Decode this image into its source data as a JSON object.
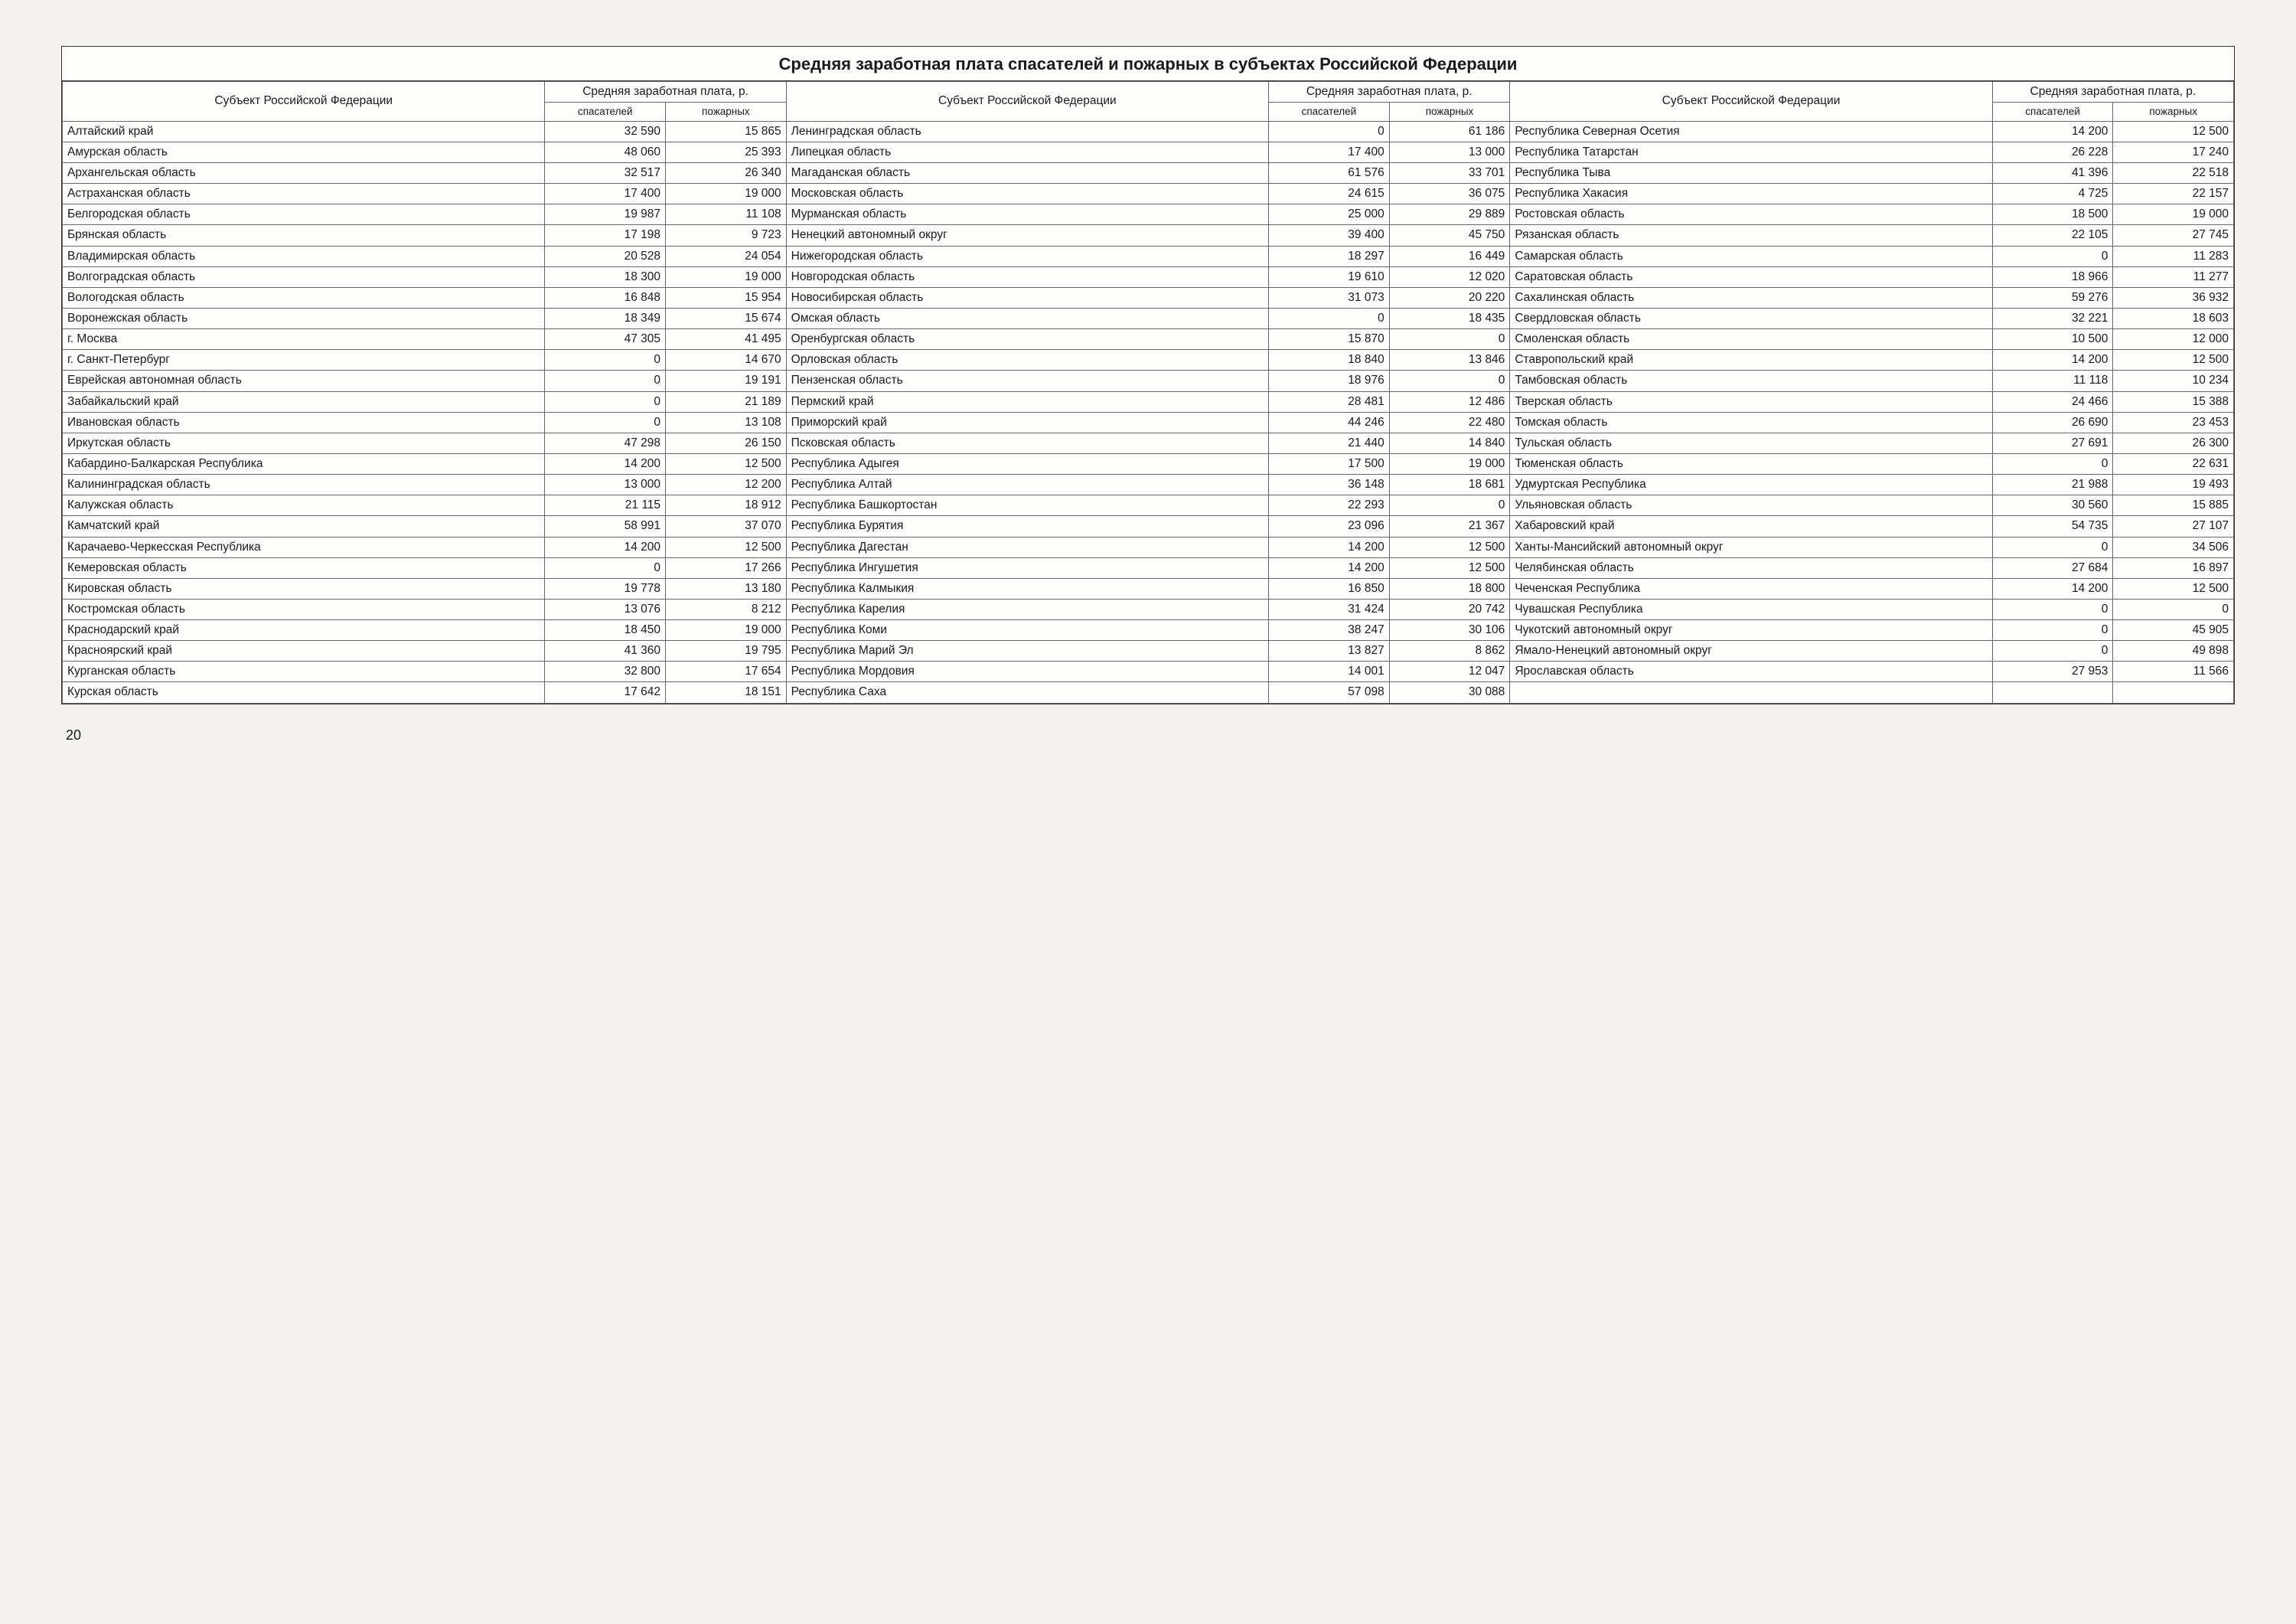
{
  "title": "Средняя заработная плата спасателей и пожарных в субъектах Российской Федерации",
  "header": {
    "subject": "Субъект Российской Федерации",
    "salary_group": "Средняя заработная плата, р.",
    "rescuers": "спасателей",
    "firefighters": "пожарных"
  },
  "page_number": "20",
  "columns": [
    {
      "type": "subject",
      "width": "22%"
    },
    {
      "type": "num",
      "width": "5.6%"
    },
    {
      "type": "num",
      "width": "5.6%"
    },
    {
      "type": "subject",
      "width": "22%"
    },
    {
      "type": "num",
      "width": "5.6%"
    },
    {
      "type": "num",
      "width": "5.6%"
    },
    {
      "type": "subject",
      "width": "22%"
    },
    {
      "type": "num",
      "width": "5.6%"
    },
    {
      "type": "num",
      "width": "5.6%"
    }
  ],
  "rows": [
    [
      "Алтайский край",
      "32 590",
      "15 865",
      "Ленинградская область",
      "0",
      "61 186",
      "Республика Северная Осетия",
      "14 200",
      "12 500"
    ],
    [
      "Амурская область",
      "48 060",
      "25 393",
      "Липецкая область",
      "17 400",
      "13 000",
      "Республика Татарстан",
      "26 228",
      "17 240"
    ],
    [
      "Архангельская область",
      "32 517",
      "26 340",
      "Магаданская область",
      "61 576",
      "33 701",
      "Республика Тыва",
      "41 396",
      "22 518"
    ],
    [
      "Астраханская область",
      "17 400",
      "19 000",
      "Московская область",
      "24 615",
      "36 075",
      "Республика Хакасия",
      "4 725",
      "22 157"
    ],
    [
      "Белгородская  область",
      "19 987",
      "11 108",
      "Мурманская область",
      "25 000",
      "29 889",
      "Ростовская область",
      "18 500",
      "19 000"
    ],
    [
      "Брянская  область",
      "17 198",
      "9 723",
      "Ненецкий автономный округ",
      "39 400",
      "45 750",
      "Рязанская область",
      "22 105",
      "27 745"
    ],
    [
      "Владимирская область",
      "20 528",
      "24 054",
      "Нижегородская область",
      "18 297",
      "16 449",
      "Самарская область",
      "0",
      "11 283"
    ],
    [
      "Волгоградская область",
      "18 300",
      "19 000",
      "Новгородская область",
      "19 610",
      "12 020",
      "Саратовская область",
      "18 966",
      "11 277"
    ],
    [
      "Вологодская область",
      "16 848",
      "15 954",
      "Новосибирская область",
      "31 073",
      "20 220",
      "Сахалинская область",
      "59 276",
      "36 932"
    ],
    [
      "Воронежская область",
      "18 349",
      "15 674",
      "Омская область",
      "0",
      "18 435",
      "Свердловская область",
      "32 221",
      "18 603"
    ],
    [
      "г. Москва",
      "47 305",
      "41 495",
      "Оренбургская область",
      "15 870",
      "0",
      "Смоленская область",
      "10 500",
      "12 000"
    ],
    [
      "г. Санкт-Петербург",
      "0",
      "14 670",
      "Орловская область",
      "18 840",
      "13 846",
      "Ставропольский край",
      "14 200",
      "12 500"
    ],
    [
      "Еврейская автономная область",
      "0",
      "19 191",
      "Пензенская область",
      "18 976",
      "0",
      "Тамбовская область",
      "11 118",
      "10 234"
    ],
    [
      "Забайкальский край",
      "0",
      "21 189",
      "Пермский край",
      "28 481",
      "12 486",
      "Тверская область",
      "24 466",
      "15 388"
    ],
    [
      "Ивановская область",
      "0",
      "13 108",
      "Приморский край",
      "44 246",
      "22 480",
      "Томская область",
      "26 690",
      "23 453"
    ],
    [
      "Иркутская область",
      "47 298",
      "26 150",
      "Псковская область",
      "21 440",
      "14 840",
      "Тульская область",
      "27 691",
      "26 300"
    ],
    [
      "Кабардино-Балкарская Республика",
      "14 200",
      "12 500",
      "Республика Адыгея",
      "17 500",
      "19 000",
      "Тюменская область",
      "0",
      "22 631"
    ],
    [
      "Калининградская область",
      "13 000",
      "12 200",
      "Республика Алтай",
      "36 148",
      "18 681",
      "Удмуртская Республика",
      "21 988",
      "19 493"
    ],
    [
      "Калужская область",
      "21 115",
      "18 912",
      "Республика Башкортостан",
      "22 293",
      "0",
      "Ульяновская область",
      "30 560",
      "15 885"
    ],
    [
      "Камчатский край",
      "58 991",
      "37 070",
      "Республика Бурятия",
      "23 096",
      "21 367",
      "Хабаровский край",
      "54 735",
      "27 107"
    ],
    [
      "Карачаево-Черкесская Республика",
      "14 200",
      "12 500",
      "Республика Дагестан",
      "14 200",
      "12 500",
      "Ханты-Мансийский автономный округ",
      "0",
      "34 506"
    ],
    [
      "Кемеровская область",
      "0",
      "17 266",
      "Республика Ингушетия",
      "14 200",
      "12 500",
      "Челябинская область",
      "27 684",
      "16 897"
    ],
    [
      "Кировская область",
      "19 778",
      "13 180",
      "Республика Калмыкия",
      "16 850",
      "18 800",
      "Чеченская Республика",
      "14 200",
      "12 500"
    ],
    [
      "Костромская область",
      "13 076",
      "8 212",
      "Республика Карелия",
      "31 424",
      "20 742",
      "Чувашская Республика",
      "0",
      "0"
    ],
    [
      "Краснодарский край",
      "18 450",
      "19 000",
      "Республика Коми",
      "38 247",
      "30 106",
      "Чукотский автономный округ",
      "0",
      "45 905"
    ],
    [
      "Красноярский край",
      "41 360",
      "19 795",
      "Республика Марий Эл",
      "13 827",
      "8 862",
      "Ямало-Ненецкий автономный округ",
      "0",
      "49 898"
    ],
    [
      "Курганская область",
      "32 800",
      "17 654",
      "Республика Мордовия",
      "14 001",
      "12 047",
      "Ярославская область",
      "27 953",
      "11 566"
    ],
    [
      "Курская область",
      "17 642",
      "18 151",
      "Республика Саха",
      "57 098",
      "30 088",
      "",
      "",
      ""
    ]
  ],
  "styling": {
    "background_color": "#f5f3ef",
    "table_background": "#fdfdfb",
    "border_color": "#333333",
    "cell_border_color": "#666666",
    "text_color": "#1a1a1a",
    "font_family": "Arial",
    "title_fontsize": 22,
    "cell_fontsize": 15.5,
    "subheader_fontsize": 13.5
  }
}
